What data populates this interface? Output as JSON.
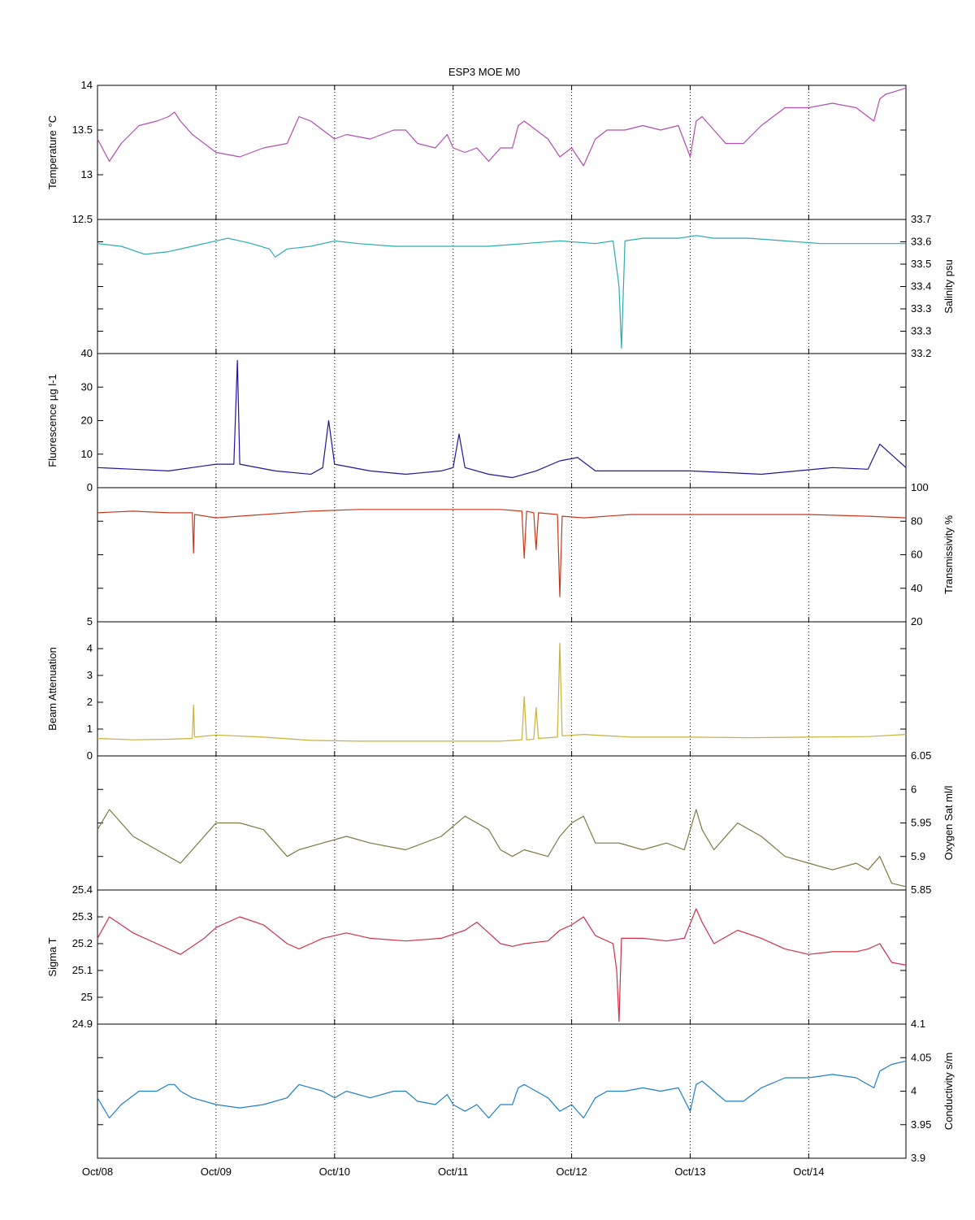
{
  "figure": {
    "title": "ESP3 MOE   M0"
  },
  "x_axis": {
    "ticks": [
      "Oct/08",
      "Oct/09",
      "Oct/10",
      "Oct/11",
      "Oct/12",
      "Oct/13",
      "Oct/14"
    ],
    "range_days": [
      0,
      6.82
    ]
  },
  "chart_data": [
    {
      "type": "line",
      "ylabel": "Temperature °C",
      "axis_side": "left",
      "ylim": [
        12.5,
        14
      ],
      "yticks": [
        "12.5",
        "13",
        "13.5",
        "14"
      ],
      "color": "#b04fb0",
      "x_unit": "days since Oct/08",
      "x": [
        0,
        0.1,
        0.2,
        0.35,
        0.5,
        0.6,
        0.65,
        0.7,
        0.8,
        1.0,
        1.2,
        1.4,
        1.6,
        1.7,
        1.8,
        1.9,
        2.0,
        2.1,
        2.3,
        2.5,
        2.6,
        2.7,
        2.85,
        2.95,
        3.0,
        3.1,
        3.2,
        3.3,
        3.4,
        3.5,
        3.55,
        3.6,
        3.65,
        3.7,
        3.8,
        3.9,
        4.0,
        4.1,
        4.2,
        4.3,
        4.45,
        4.6,
        4.75,
        4.9,
        5.0,
        5.05,
        5.1,
        5.2,
        5.3,
        5.45,
        5.6,
        5.8,
        6.0,
        6.2,
        6.4,
        6.55,
        6.6,
        6.65,
        6.7,
        6.82
      ],
      "values": [
        13.4,
        13.15,
        13.35,
        13.55,
        13.6,
        13.65,
        13.7,
        13.6,
        13.45,
        13.25,
        13.2,
        13.3,
        13.35,
        13.65,
        13.6,
        13.5,
        13.4,
        13.45,
        13.4,
        13.5,
        13.5,
        13.35,
        13.3,
        13.45,
        13.3,
        13.25,
        13.3,
        13.15,
        13.3,
        13.3,
        13.55,
        13.6,
        13.55,
        13.5,
        13.4,
        13.2,
        13.3,
        13.1,
        13.4,
        13.5,
        13.5,
        13.55,
        13.5,
        13.55,
        13.2,
        13.6,
        13.65,
        13.5,
        13.35,
        13.35,
        13.55,
        13.75,
        13.75,
        13.8,
        13.75,
        13.6,
        13.85,
        13.9,
        13.92,
        13.97
      ]
    },
    {
      "type": "line",
      "ylabel": "Salinity psu",
      "axis_side": "right",
      "ylim": [
        33.2,
        33.7
      ],
      "yticks": [
        "33.2",
        "33.3",
        "33.3",
        "33.4",
        "33.5",
        "33.6",
        "33.7"
      ],
      "color": "#2aacb0",
      "x_unit": "days since Oct/08",
      "x": [
        0,
        0.2,
        0.4,
        0.6,
        0.8,
        1.0,
        1.1,
        1.3,
        1.45,
        1.5,
        1.6,
        1.8,
        2.0,
        2.2,
        2.5,
        2.8,
        3.0,
        3.3,
        3.6,
        3.9,
        4.2,
        4.35,
        4.4,
        4.42,
        4.45,
        4.6,
        4.9,
        5.05,
        5.2,
        5.5,
        5.8,
        6.1,
        6.4,
        6.82
      ],
      "values": [
        33.61,
        33.6,
        33.57,
        33.58,
        33.6,
        33.62,
        33.63,
        33.61,
        33.59,
        33.56,
        33.59,
        33.6,
        33.62,
        33.61,
        33.6,
        33.6,
        33.6,
        33.6,
        33.61,
        33.62,
        33.61,
        33.62,
        33.45,
        33.22,
        33.62,
        33.63,
        33.63,
        33.64,
        33.63,
        33.63,
        33.62,
        33.61,
        33.61,
        33.61
      ]
    },
    {
      "type": "line",
      "ylabel": "Fluorescence µg l-1",
      "axis_side": "left",
      "ylim": [
        0,
        40
      ],
      "yticks": [
        "0",
        "10",
        "20",
        "30",
        "40"
      ],
      "color": "#22139e",
      "x_unit": "days since Oct/08",
      "x": [
        0,
        0.3,
        0.6,
        0.9,
        1.0,
        1.15,
        1.18,
        1.2,
        1.5,
        1.8,
        1.9,
        1.95,
        2.0,
        2.3,
        2.6,
        2.9,
        3.0,
        3.05,
        3.1,
        3.3,
        3.5,
        3.7,
        3.9,
        4.05,
        4.2,
        4.4,
        4.7,
        5.0,
        5.3,
        5.6,
        5.9,
        6.2,
        6.5,
        6.6,
        6.82
      ],
      "values": [
        6,
        5.5,
        5,
        6.5,
        7,
        7,
        38,
        7,
        5,
        4,
        6,
        20,
        7,
        5,
        4,
        5,
        6,
        16,
        6,
        4,
        3,
        5,
        8,
        9,
        5,
        5,
        5,
        5,
        4.5,
        4,
        5,
        6,
        5.5,
        13,
        6
      ]
    },
    {
      "type": "line",
      "ylabel": "Transmissivity %",
      "axis_side": "right",
      "ylim": [
        20,
        100
      ],
      "yticks": [
        "20",
        "40",
        "60",
        "80",
        "100"
      ],
      "color": "#c8391c",
      "x_unit": "days since Oct/08",
      "x": [
        0,
        0.3,
        0.6,
        0.8,
        0.81,
        0.82,
        1.0,
        1.4,
        1.8,
        2.2,
        2.6,
        3.0,
        3.4,
        3.58,
        3.6,
        3.62,
        3.68,
        3.7,
        3.72,
        3.88,
        3.9,
        3.92,
        4.1,
        4.5,
        5.0,
        5.5,
        6.0,
        6.5,
        6.82
      ],
      "values": [
        85,
        86,
        85,
        85,
        61,
        84,
        82,
        84,
        86,
        87,
        87,
        87,
        87,
        86,
        58,
        86,
        85,
        63,
        85,
        84,
        35,
        83,
        82,
        84,
        84,
        84,
        84,
        83,
        82
      ]
    },
    {
      "type": "line",
      "ylabel": "Beam Attenuation",
      "axis_side": "left",
      "ylim": [
        0,
        5
      ],
      "yticks": [
        "0",
        "1",
        "2",
        "3",
        "4",
        "5"
      ],
      "color": "#c9b13a",
      "x_unit": "days since Oct/08",
      "x": [
        0,
        0.3,
        0.6,
        0.8,
        0.81,
        0.82,
        1.0,
        1.4,
        1.8,
        2.2,
        2.6,
        3.0,
        3.4,
        3.58,
        3.6,
        3.62,
        3.68,
        3.7,
        3.72,
        3.88,
        3.9,
        3.92,
        4.1,
        4.5,
        5.0,
        5.5,
        6.0,
        6.5,
        6.82
      ],
      "values": [
        0.65,
        0.6,
        0.62,
        0.65,
        1.9,
        0.7,
        0.78,
        0.7,
        0.58,
        0.55,
        0.55,
        0.55,
        0.55,
        0.6,
        2.2,
        0.6,
        0.62,
        1.8,
        0.65,
        0.7,
        4.2,
        0.75,
        0.8,
        0.7,
        0.7,
        0.68,
        0.7,
        0.72,
        0.8
      ]
    },
    {
      "type": "line",
      "ylabel": "Oxygen Sat ml/l",
      "axis_side": "right",
      "ylim": [
        5.85,
        6.05
      ],
      "yticks": [
        "5.85",
        "5.9",
        "5.95",
        "6",
        "6.05"
      ],
      "color": "#7d7842",
      "x_unit": "days since Oct/08",
      "x": [
        0,
        0.1,
        0.3,
        0.5,
        0.7,
        0.9,
        1.0,
        1.2,
        1.4,
        1.6,
        1.7,
        1.9,
        2.1,
        2.3,
        2.6,
        2.9,
        3.1,
        3.2,
        3.3,
        3.4,
        3.5,
        3.6,
        3.8,
        3.9,
        4.0,
        4.1,
        4.2,
        4.4,
        4.6,
        4.8,
        4.95,
        5.05,
        5.1,
        5.2,
        5.4,
        5.6,
        5.8,
        6.0,
        6.2,
        6.4,
        6.5,
        6.6,
        6.7,
        6.82
      ],
      "values": [
        5.94,
        5.97,
        5.93,
        5.91,
        5.89,
        5.93,
        5.95,
        5.95,
        5.94,
        5.9,
        5.91,
        5.92,
        5.93,
        5.92,
        5.91,
        5.93,
        5.96,
        5.95,
        5.94,
        5.91,
        5.9,
        5.91,
        5.9,
        5.93,
        5.95,
        5.96,
        5.92,
        5.92,
        5.91,
        5.92,
        5.91,
        5.97,
        5.94,
        5.91,
        5.95,
        5.93,
        5.9,
        5.89,
        5.88,
        5.89,
        5.88,
        5.9,
        5.86,
        5.855
      ]
    },
    {
      "type": "line",
      "ylabel": "Sigma T",
      "axis_side": "left",
      "ylim": [
        24.9,
        25.4
      ],
      "yticks": [
        "24.9",
        "25",
        "25.1",
        "25.2",
        "25.3",
        "25.4"
      ],
      "color": "#d0304a",
      "x_unit": "days since Oct/08",
      "x": [
        0,
        0.1,
        0.3,
        0.5,
        0.7,
        0.9,
        1.0,
        1.2,
        1.4,
        1.6,
        1.7,
        1.9,
        2.1,
        2.3,
        2.6,
        2.9,
        3.1,
        3.2,
        3.3,
        3.4,
        3.5,
        3.6,
        3.8,
        3.9,
        4.0,
        4.1,
        4.2,
        4.35,
        4.38,
        4.4,
        4.42,
        4.6,
        4.8,
        4.95,
        5.05,
        5.1,
        5.2,
        5.4,
        5.6,
        5.8,
        6.0,
        6.2,
        6.4,
        6.5,
        6.6,
        6.7,
        6.82
      ],
      "values": [
        25.22,
        25.3,
        25.24,
        25.2,
        25.16,
        25.22,
        25.26,
        25.3,
        25.27,
        25.2,
        25.18,
        25.22,
        25.24,
        25.22,
        25.21,
        25.22,
        25.25,
        25.28,
        25.24,
        25.2,
        25.19,
        25.2,
        25.21,
        25.25,
        25.27,
        25.3,
        25.23,
        25.2,
        25.1,
        24.91,
        25.22,
        25.22,
        25.21,
        25.22,
        25.33,
        25.28,
        25.2,
        25.25,
        25.22,
        25.18,
        25.16,
        25.17,
        25.17,
        25.18,
        25.2,
        25.13,
        25.12
      ]
    },
    {
      "type": "line",
      "ylabel": "Conductivity s/m",
      "axis_side": "right",
      "ylim": [
        3.9,
        4.1
      ],
      "yticks": [
        "3.9",
        "3.95",
        "4",
        "4.05",
        "4.1"
      ],
      "color": "#1e7fcb",
      "x_unit": "days since Oct/08",
      "x": [
        0,
        0.1,
        0.2,
        0.35,
        0.5,
        0.6,
        0.65,
        0.7,
        0.8,
        1.0,
        1.2,
        1.4,
        1.6,
        1.7,
        1.8,
        1.9,
        2.0,
        2.1,
        2.3,
        2.5,
        2.6,
        2.7,
        2.85,
        2.95,
        3.0,
        3.1,
        3.2,
        3.3,
        3.4,
        3.5,
        3.55,
        3.6,
        3.65,
        3.7,
        3.8,
        3.9,
        4.0,
        4.1,
        4.2,
        4.3,
        4.45,
        4.6,
        4.75,
        4.9,
        5.0,
        5.05,
        5.1,
        5.2,
        5.3,
        5.45,
        5.6,
        5.8,
        6.0,
        6.2,
        6.4,
        6.55,
        6.6,
        6.65,
        6.7,
        6.82
      ],
      "values": [
        3.99,
        3.96,
        3.98,
        4.0,
        4.0,
        4.01,
        4.01,
        4.0,
        3.99,
        3.98,
        3.975,
        3.98,
        3.99,
        4.01,
        4.005,
        4.0,
        3.99,
        4.0,
        3.99,
        4.0,
        4.0,
        3.985,
        3.98,
        3.995,
        3.98,
        3.97,
        3.98,
        3.96,
        3.98,
        3.98,
        4.005,
        4.01,
        4.005,
        4.0,
        3.99,
        3.97,
        3.98,
        3.96,
        3.99,
        4.0,
        4.0,
        4.005,
        4.0,
        4.005,
        3.97,
        4.01,
        4.015,
        4.0,
        3.985,
        3.985,
        4.005,
        4.02,
        4.02,
        4.025,
        4.02,
        4.005,
        4.03,
        4.035,
        4.04,
        4.045
      ]
    }
  ]
}
